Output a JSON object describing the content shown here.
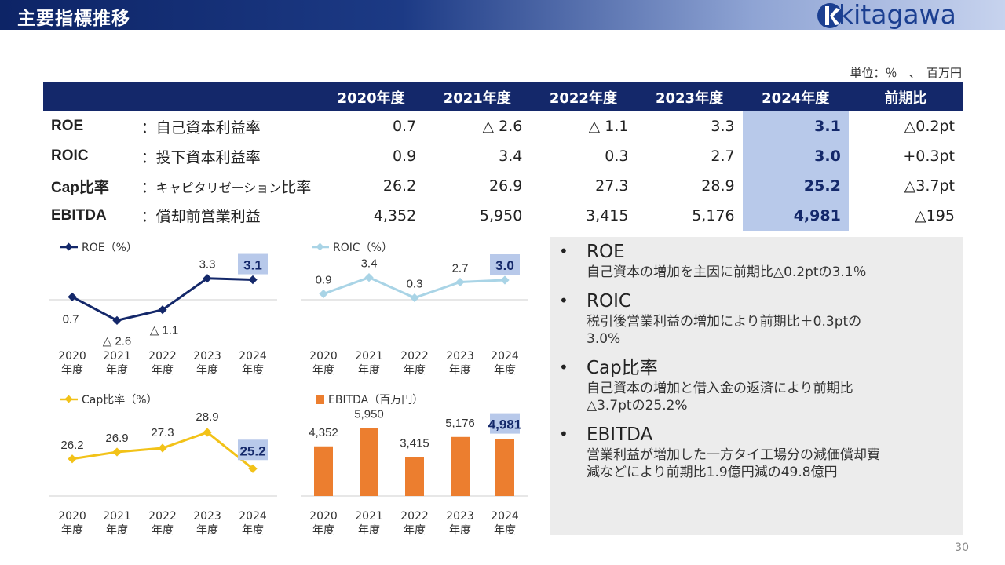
{
  "header": {
    "title": "主要指標推移",
    "logo_text": "kitagawa",
    "logo_color": "#1b3f91"
  },
  "unit": "単位：％　、　百万円",
  "table": {
    "columns": [
      "2020年度",
      "2021年度",
      "2022年度",
      "2023年度",
      "2024年度",
      "前期比"
    ],
    "rows": [
      {
        "name": "ROE",
        "desc": "：自己資本利益率",
        "values": [
          "0.7",
          "△ 2.6",
          "△ 1.1",
          "3.3",
          "3.1"
        ],
        "diff": "△0.2pt"
      },
      {
        "name": "ROIC",
        "desc": "：投下資本利益率",
        "values": [
          "0.9",
          "3.4",
          "0.3",
          "2.7",
          "3.0"
        ],
        "diff": "+0.3pt"
      },
      {
        "name": "Cap比率",
        "desc_prefix": "：",
        "desc_kana": "キャピタリゼーション",
        "desc_suffix": "比率",
        "values": [
          "26.2",
          "26.9",
          "27.3",
          "28.9",
          "25.2"
        ],
        "diff": "△3.7pt"
      },
      {
        "name": "EBITDA",
        "desc": "：償却前営業利益",
        "values": [
          "4,352",
          "5,950",
          "3,415",
          "5,176",
          "4,981"
        ],
        "diff": "△195"
      }
    ]
  },
  "chart_data": [
    {
      "type": "line",
      "legend": "ROE（%）",
      "color": "#14286a",
      "categories": [
        "2020\n年度",
        "2021\n年度",
        "2022\n年度",
        "2023\n年度",
        "2024\n年度"
      ],
      "values": [
        0.7,
        -2.6,
        -1.1,
        3.3,
        3.1
      ],
      "labels": [
        "0.7",
        "△ 2.6",
        "△ 1.1",
        "3.3",
        "3.1"
      ]
    },
    {
      "type": "line",
      "legend": "ROIC（%）",
      "color": "#a9d4e6",
      "categories": [
        "2020\n年度",
        "2021\n年度",
        "2022\n年度",
        "2023\n年度",
        "2024\n年度"
      ],
      "values": [
        0.9,
        3.4,
        0.3,
        2.7,
        3.0
      ],
      "labels": [
        "0.9",
        "3.4",
        "0.3",
        "2.7",
        "3.0"
      ]
    },
    {
      "type": "line",
      "legend": "Cap比率（%）",
      "color": "#f2c218",
      "categories": [
        "2020\n年度",
        "2021\n年度",
        "2022\n年度",
        "2023\n年度",
        "2024\n年度"
      ],
      "values": [
        26.2,
        26.9,
        27.3,
        28.9,
        25.2
      ],
      "labels": [
        "26.2",
        "26.9",
        "27.3",
        "28.9",
        "25.2"
      ]
    },
    {
      "type": "bar",
      "legend": "EBITDA（百万円）",
      "color": "#ec7e2f",
      "categories": [
        "2020\n年度",
        "2021\n年度",
        "2022\n年度",
        "2023\n年度",
        "2024\n年度"
      ],
      "values": [
        4352,
        5950,
        3415,
        5176,
        4981
      ],
      "labels": [
        "4,352",
        "5,950",
        "3,415",
        "5,176",
        "4,981"
      ]
    }
  ],
  "comments": [
    {
      "head": "ROE",
      "body": "自己資本の増加を主因に前期比△0.2ptの3.1％"
    },
    {
      "head": "ROIC",
      "body": "税引後営業利益の増加により前期比＋0.3ptの\n3.0%"
    },
    {
      "head": "Cap比率",
      "body": "自己資本の増加と借入金の返済により前期比\n△3.7ptの25.2%"
    },
    {
      "head": "EBITDA",
      "body": "営業利益が増加した一方タイ工場分の減価償却費\n減などにより前期比1.9億円減の49.8億円"
    }
  ],
  "bullet": "•",
  "page_number": "30",
  "highlight_color": "#b8c9ea"
}
